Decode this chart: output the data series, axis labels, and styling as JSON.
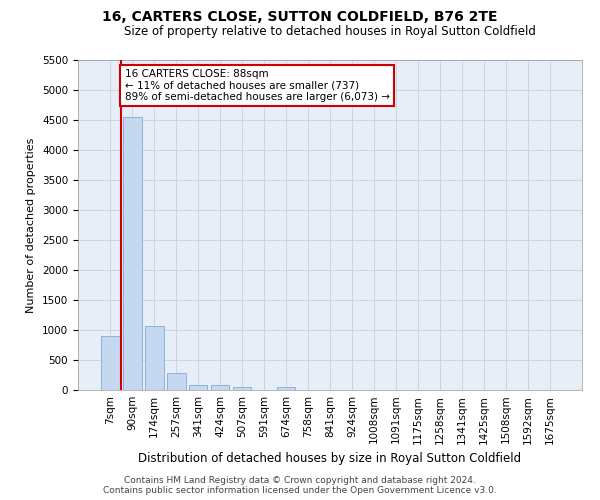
{
  "title": "16, CARTERS CLOSE, SUTTON COLDFIELD, B76 2TE",
  "subtitle": "Size of property relative to detached houses in Royal Sutton Coldfield",
  "xlabel": "Distribution of detached houses by size in Royal Sutton Coldfield",
  "ylabel": "Number of detached properties",
  "footer_line1": "Contains HM Land Registry data © Crown copyright and database right 2024.",
  "footer_line2": "Contains public sector information licensed under the Open Government Licence v3.0.",
  "bin_labels": [
    "7sqm",
    "90sqm",
    "174sqm",
    "257sqm",
    "341sqm",
    "424sqm",
    "507sqm",
    "591sqm",
    "674sqm",
    "758sqm",
    "841sqm",
    "924sqm",
    "1008sqm",
    "1091sqm",
    "1175sqm",
    "1258sqm",
    "1341sqm",
    "1425sqm",
    "1508sqm",
    "1592sqm",
    "1675sqm"
  ],
  "bar_values": [
    900,
    4550,
    1070,
    290,
    80,
    80,
    55,
    0,
    55,
    0,
    0,
    0,
    0,
    0,
    0,
    0,
    0,
    0,
    0,
    0,
    0
  ],
  "bar_color": "#c5d8ef",
  "bar_edgecolor": "#7aadd4",
  "property_line_color": "#cc0000",
  "annotation_text": "16 CARTERS CLOSE: 88sqm\n← 11% of detached houses are smaller (737)\n89% of semi-detached houses are larger (6,073) →",
  "annotation_box_color": "#cc0000",
  "ylim": [
    0,
    5500
  ],
  "yticks": [
    0,
    500,
    1000,
    1500,
    2000,
    2500,
    3000,
    3500,
    4000,
    4500,
    5000,
    5500
  ],
  "grid_color": "#c8d4e8",
  "bg_color": "#e8eef8",
  "title_fontsize": 10,
  "subtitle_fontsize": 8.5,
  "xlabel_fontsize": 8.5,
  "ylabel_fontsize": 8,
  "tick_fontsize": 7.5,
  "footer_fontsize": 6.5
}
